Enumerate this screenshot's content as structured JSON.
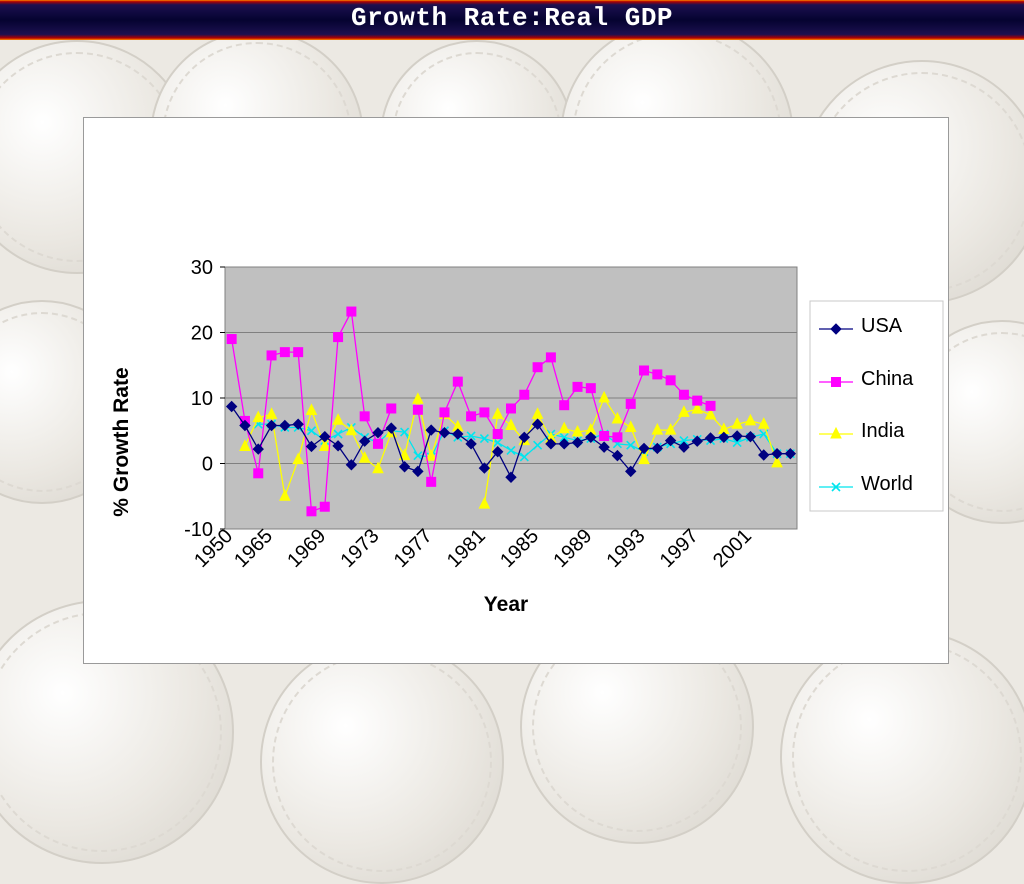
{
  "slide": {
    "title": "Growth Rate:Real GDP"
  },
  "chart_data": {
    "type": "line",
    "title": "",
    "xlabel": "Year",
    "ylabel": "% Growth Rate",
    "ylim": [
      -10,
      30
    ],
    "yticks": [
      "30",
      "20",
      "10",
      "0",
      "-10"
    ],
    "xtick_labels": [
      "1950",
      "1965",
      "1969",
      "1973",
      "1977",
      "1981",
      "1985",
      "1989",
      "1993",
      "1997",
      "2001"
    ],
    "categories": [
      "1950",
      "1963",
      "1964",
      "1965",
      "1966",
      "1967",
      "1968",
      "1969",
      "1970",
      "1971",
      "1972",
      "1973",
      "1974",
      "1975",
      "1976",
      "1977",
      "1978",
      "1979",
      "1980",
      "1981",
      "1982",
      "1983",
      "1984",
      "1985",
      "1986",
      "1987",
      "1988",
      "1989",
      "1990",
      "1991",
      "1992",
      "1993",
      "1994",
      "1995",
      "1996",
      "1997",
      "1998",
      "1999",
      "2000",
      "2001",
      "2002",
      "2003",
      "2004"
    ],
    "grid": true,
    "legend_position": "right",
    "series": [
      {
        "name": "USA",
        "color": "#000080",
        "marker": "diamond",
        "values": [
          8.7,
          5.8,
          2.2,
          5.8,
          5.8,
          6.0,
          2.6,
          4.1,
          2.7,
          -0.2,
          3.4,
          4.7,
          5.4,
          -0.5,
          -1.2,
          5.1,
          4.7,
          4.5,
          3.0,
          -0.7,
          1.8,
          -2.1,
          4.0,
          6.0,
          3.0,
          3.0,
          3.2,
          4.0,
          2.5,
          1.2,
          -1.2,
          2.3,
          2.3,
          3.5,
          2.5,
          3.4,
          3.9,
          4.0,
          4.2,
          4.1,
          1.3,
          1.5,
          1.5
        ]
      },
      {
        "name": "China",
        "color": "#ff00ff",
        "marker": "square",
        "values": [
          19.0,
          6.5,
          -1.5,
          16.5,
          17.0,
          17.0,
          -7.3,
          -6.6,
          19.3,
          23.2,
          7.2,
          3.0,
          8.4,
          null,
          8.2,
          -2.8,
          7.8,
          12.5,
          7.2,
          7.8,
          4.5,
          8.4,
          10.5,
          14.7,
          16.2,
          8.9,
          11.7,
          11.5,
          4.2,
          4.0,
          9.1,
          14.2,
          13.6,
          12.7,
          10.5,
          9.6,
          8.8,
          null,
          null,
          null,
          null,
          null,
          null
        ]
      },
      {
        "name": "India",
        "color": "#ffff00",
        "marker": "triangle",
        "values": [
          null,
          2.6,
          7.0,
          7.5,
          -5.0,
          0.6,
          8.1,
          2.6,
          6.6,
          5.0,
          0.8,
          -0.8,
          4.7,
          1.2,
          9.8,
          1.1,
          7.5,
          5.6,
          null,
          -6.2,
          7.5,
          5.8,
          3.5,
          7.5,
          3.8,
          5.3,
          4.8,
          5.1,
          10.0,
          6.8,
          5.5,
          0.6,
          5.1,
          5.1,
          7.8,
          8.3,
          7.4,
          5.2,
          6.0,
          6.5,
          6.0,
          0.1,
          null
        ]
      },
      {
        "name": "World",
        "color": "#00e5ee",
        "marker": "x",
        "values": [
          null,
          null,
          6.0,
          6.0,
          5.5,
          5.5,
          5.0,
          3.5,
          4.5,
          5.5,
          4.0,
          3.2,
          5.0,
          4.8,
          1.2,
          1.0,
          5.0,
          4.0,
          4.2,
          3.8,
          3.2,
          2.0,
          1.0,
          2.8,
          4.5,
          4.0,
          3.5,
          3.8,
          4.5,
          3.0,
          2.8,
          1.8,
          2.5,
          3.0,
          3.5,
          3.7,
          3.5,
          3.8,
          3.2,
          4.0,
          4.5,
          1.5,
          1.5
        ]
      }
    ]
  }
}
